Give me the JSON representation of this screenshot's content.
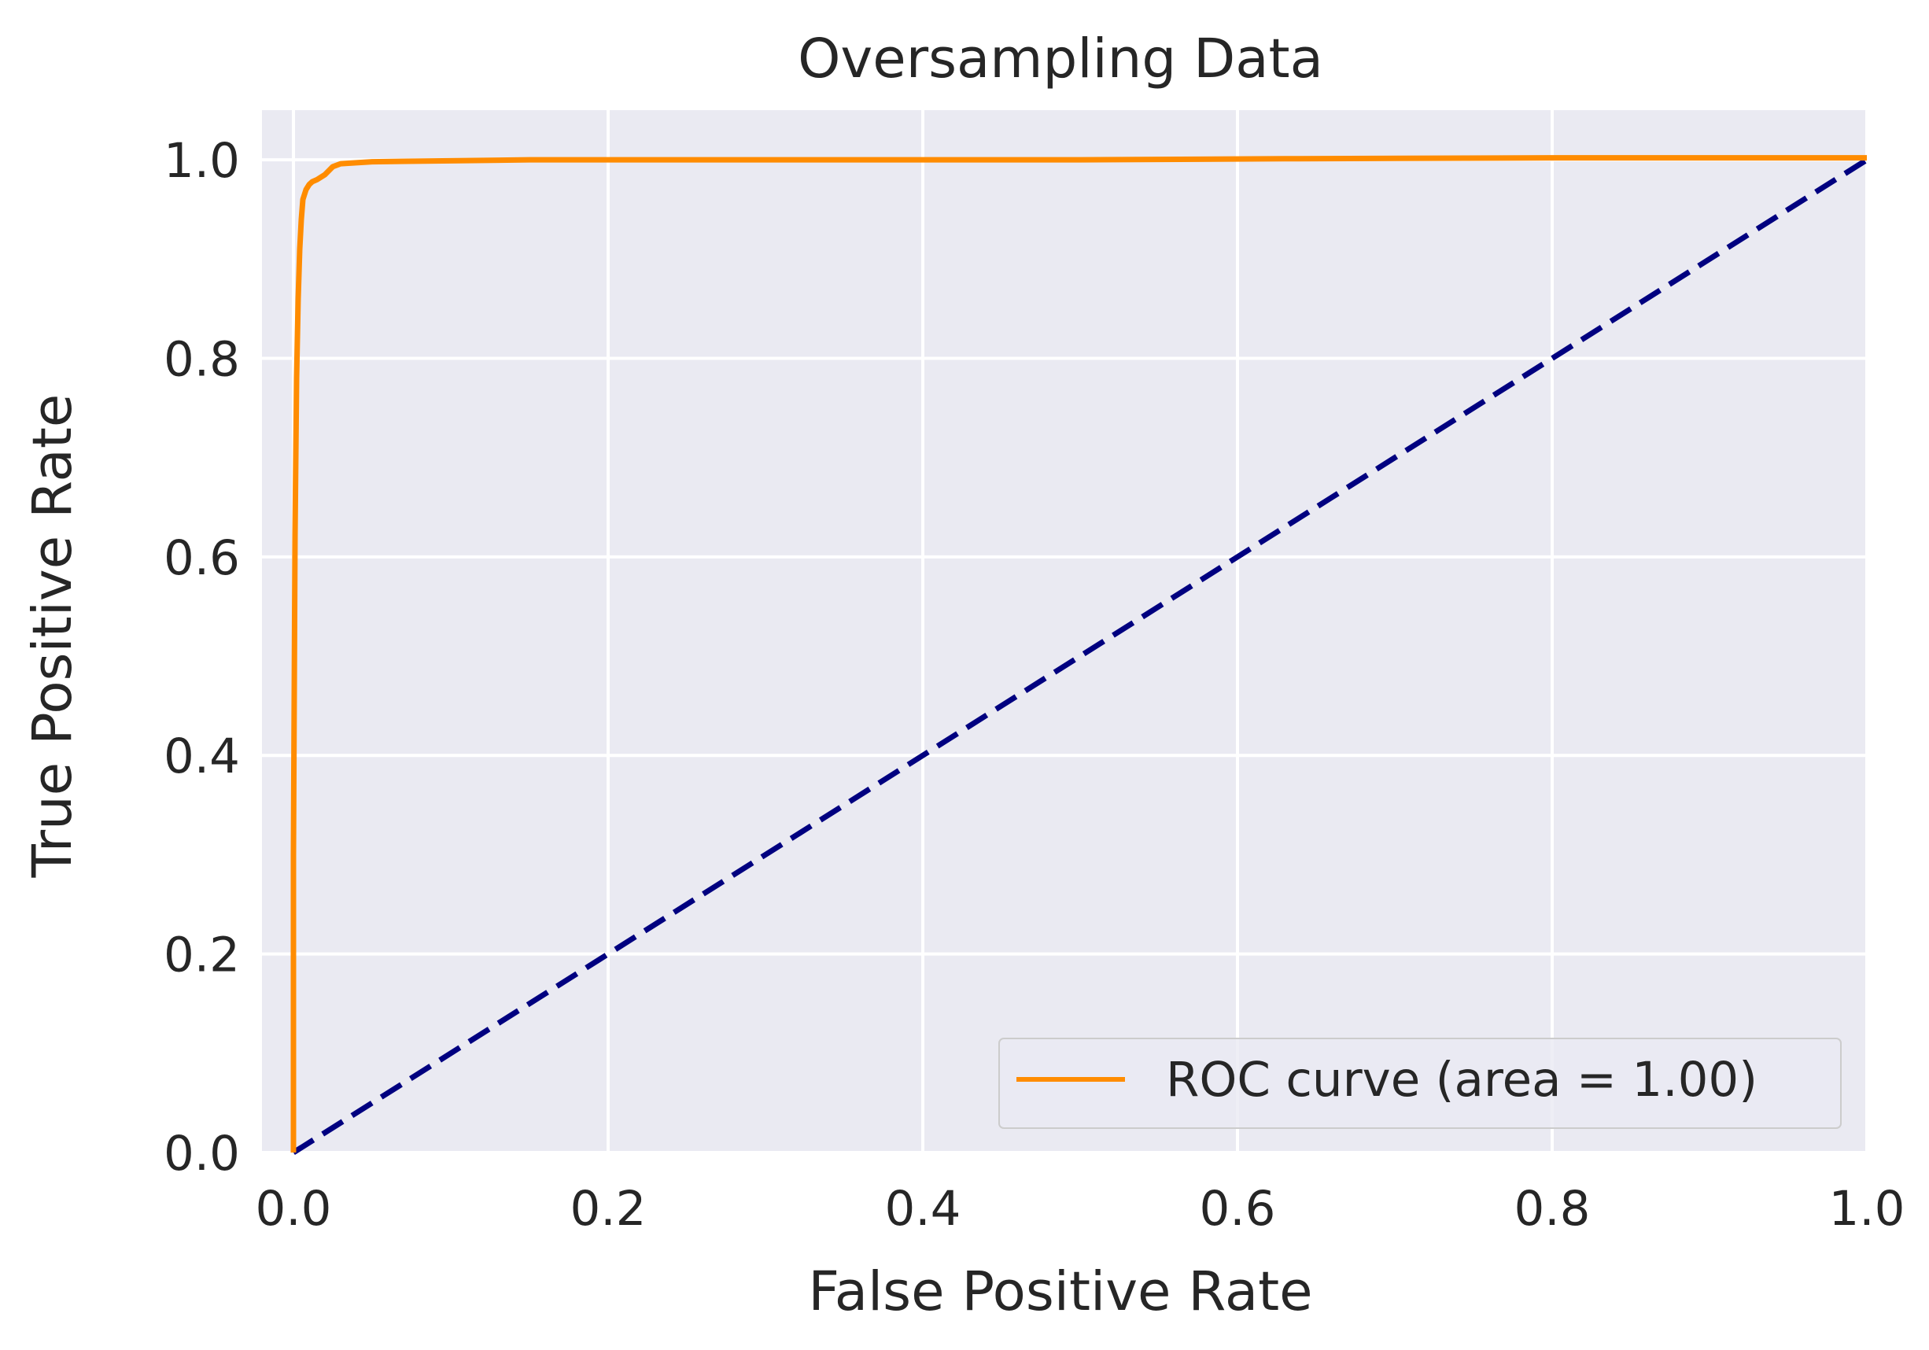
{
  "chart_data": {
    "type": "line",
    "title": "Oversampling Data",
    "xlabel": "False Positive Rate",
    "ylabel": "True Positive Rate",
    "xlim": [
      -0.02,
      1.0
    ],
    "ylim": [
      0.0,
      1.05
    ],
    "xticks": [
      "0.0",
      "0.2",
      "0.4",
      "0.6",
      "0.8",
      "1.0"
    ],
    "yticks": [
      "0.0",
      "0.2",
      "0.4",
      "0.6",
      "0.8",
      "1.0"
    ],
    "grid": true,
    "legend_position": "lower right",
    "series": [
      {
        "name": "ROC curve (area = 1.00)",
        "color": "#ff8c00",
        "style": "solid",
        "x": [
          0.0,
          0.0,
          0.001,
          0.002,
          0.003,
          0.004,
          0.005,
          0.006,
          0.008,
          0.01,
          0.012,
          0.015,
          0.02,
          0.025,
          0.03,
          0.05,
          0.1,
          0.15,
          0.3,
          0.5,
          0.63,
          0.8,
          1.0
        ],
        "y": [
          0.0,
          0.3,
          0.62,
          0.78,
          0.86,
          0.91,
          0.94,
          0.96,
          0.97,
          0.975,
          0.978,
          0.98,
          0.985,
          0.993,
          0.996,
          0.998,
          0.999,
          1.0,
          1.0,
          1.0,
          1.001,
          1.002,
          1.002
        ]
      },
      {
        "name": "",
        "color": "#000080",
        "style": "dashed",
        "x": [
          0.0,
          1.0
        ],
        "y": [
          0.0,
          1.0
        ]
      }
    ],
    "legend": [
      {
        "label": "ROC curve (area = 1.00)",
        "color": "#ff8c00"
      }
    ]
  },
  "colors": {
    "plot_background": "#eaeaf2",
    "grid": "#ffffff",
    "roc_line": "#ff8c00",
    "diagonal_line": "#000080",
    "text": "#262626"
  }
}
